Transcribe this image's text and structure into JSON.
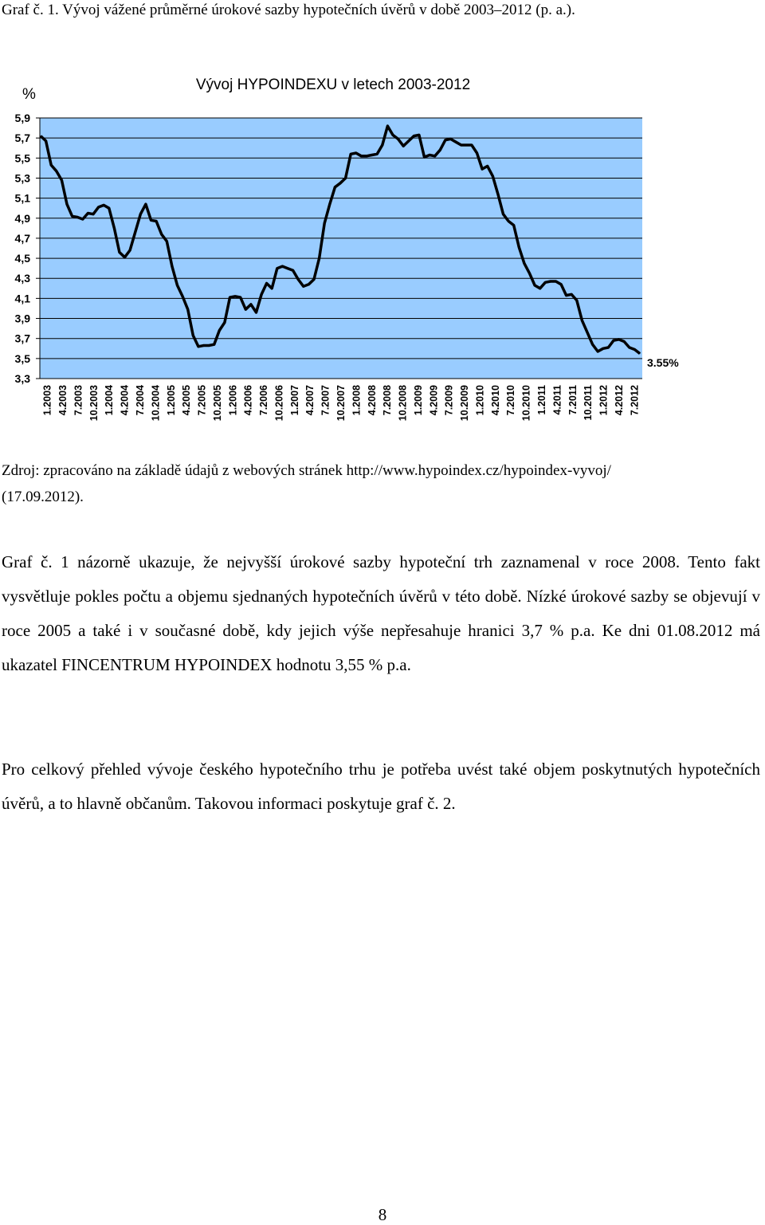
{
  "caption": "Graf č. 1. Vývoj vážené průměrné úrokové sazby hypotečních úvěrů v době 2003–2012 (p. a.).",
  "chart_data": {
    "type": "line",
    "title": "Vývoj HYPOINDEXU v letech 2003-2012",
    "ylabel": "%",
    "xlabel": "",
    "ylim": [
      3.3,
      5.9
    ],
    "y_ticks": [
      "5,9",
      "5,7",
      "5,5",
      "5,3",
      "5,1",
      "4,9",
      "4,7",
      "4,5",
      "4,3",
      "4,1",
      "3,9",
      "3,7",
      "3,5",
      "3,3"
    ],
    "x_ticks": [
      "1.2003",
      "4.2003",
      "7.2003",
      "10.2003",
      "1.2004",
      "4.2004",
      "7.2004",
      "10.2004",
      "1.2005",
      "4.2005",
      "7.2005",
      "10.2005",
      "1.2006",
      "4.2006",
      "7.2006",
      "10.2006",
      "1.2007",
      "4.2007",
      "7.2007",
      "10.2007",
      "1.2008",
      "4.2008",
      "7.2008",
      "10.2008",
      "1.2009",
      "4.2009",
      "7.2009",
      "10.2009",
      "1.2010",
      "4.2010",
      "7.2010",
      "10.2010",
      "1.2011",
      "4.2011",
      "7.2011",
      "10.2011",
      "1.2012",
      "4.2012",
      "7.2012"
    ],
    "grid": true,
    "background": "#99ccff",
    "line_color": "#000000",
    "end_label": "3.55%",
    "series": [
      {
        "name": "",
        "values": [
          5.72,
          5.67,
          5.43,
          5.37,
          5.28,
          5.04,
          4.92,
          4.91,
          4.89,
          4.95,
          4.94,
          5.01,
          5.03,
          5.0,
          4.8,
          4.56,
          4.51,
          4.58,
          4.76,
          4.94,
          5.04,
          4.88,
          4.87,
          4.74,
          4.67,
          4.42,
          4.23,
          4.12,
          3.99,
          3.73,
          3.62,
          3.63,
          3.63,
          3.64,
          3.78,
          3.86,
          4.11,
          4.12,
          4.11,
          3.99,
          4.04,
          3.96,
          4.14,
          4.25,
          4.2,
          4.4,
          4.42,
          4.4,
          4.38,
          4.29,
          4.22,
          4.24,
          4.29,
          4.5,
          4.85,
          5.04,
          5.21,
          5.25,
          5.3,
          5.54,
          5.55,
          5.52,
          5.52,
          5.53,
          5.54,
          5.63,
          5.82,
          5.73,
          5.69,
          5.62,
          5.67,
          5.72,
          5.73,
          5.51,
          5.53,
          5.52,
          5.58,
          5.68,
          5.69,
          5.66,
          5.63,
          5.63,
          5.63,
          5.55,
          5.39,
          5.42,
          5.32,
          5.14,
          4.94,
          4.87,
          4.83,
          4.61,
          4.45,
          4.35,
          4.23,
          4.2,
          4.26,
          4.27,
          4.27,
          4.24,
          4.13,
          4.14,
          4.08,
          3.88,
          3.76,
          3.64,
          3.57,
          3.6,
          3.61,
          3.68,
          3.69,
          3.67,
          3.61,
          3.59,
          3.55
        ]
      }
    ]
  },
  "source": {
    "line1": "Zdroj: zpracováno na základě údajů z webových stránek http://www.hypoindex.cz/hypoindex-vyvoj/",
    "line2": "(17.09.2012)."
  },
  "paragraph1": "Graf č. 1 názorně ukazuje, že nejvyšší úrokové sazby hypoteční trh zaznamenal v roce 2008. Tento fakt vysvětluje pokles počtu a objemu sjednaných hypotečních úvěrů v této době. Nízké úrokové sazby se objevují v roce 2005 a také i v současné době, kdy jejich výše nepřesahuje hranici 3,7 % p.a. Ke dni 01.08.2012 má ukazatel FINCENTRUM HYPOINDEX hodnotu 3,55 % p.a.",
  "paragraph2": "Pro celkový přehled vývoje českého hypotečního trhu je potřeba uvést také objem poskytnutých hypotečních úvěrů, a to hlavně občanům. Takovou informaci poskytuje graf č. 2.",
  "page_number": "8"
}
